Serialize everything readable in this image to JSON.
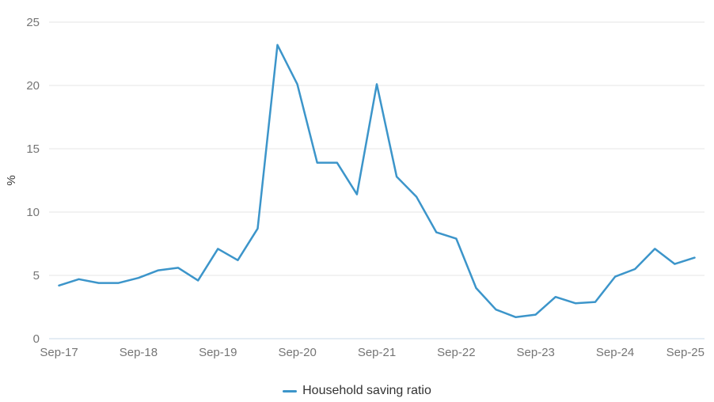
{
  "chart": {
    "ylabel": "%",
    "legend_label": "Household saving ratio"
  },
  "colors": {
    "line": "#3c95ca",
    "gridline": "#e6e6e6",
    "baseline": "#c9d9e8",
    "tick_label": "#757575",
    "legend_text": "#333333",
    "background": "#ffffff"
  },
  "chart_data": {
    "type": "line",
    "title": "",
    "xlabel": "",
    "ylabel": "%",
    "ylim": [
      0,
      25
    ],
    "yticks": [
      0,
      5,
      10,
      15,
      20,
      25
    ],
    "grid": "horizontal",
    "legend_position": "bottom-center",
    "x": [
      "Sep-17",
      "Dec-17",
      "Mar-18",
      "Jun-18",
      "Sep-18",
      "Dec-18",
      "Mar-19",
      "Jun-19",
      "Sep-19",
      "Dec-19",
      "Mar-20",
      "Jun-20",
      "Sep-20",
      "Dec-20",
      "Mar-21",
      "Jun-21",
      "Sep-21",
      "Dec-21",
      "Mar-22",
      "Jun-22",
      "Sep-22",
      "Dec-22",
      "Mar-23",
      "Jun-23",
      "Sep-23",
      "Dec-23",
      "Mar-24",
      "Jun-24",
      "Sep-24",
      "Dec-24",
      "Mar-25",
      "Jun-25",
      "Sep-25"
    ],
    "x_tick_labels": [
      "Sep-17",
      "Sep-18",
      "Sep-19",
      "Sep-20",
      "Sep-21",
      "Sep-22",
      "Sep-23",
      "Sep-24",
      "Sep-25"
    ],
    "series": [
      {
        "name": "Household saving ratio",
        "color": "#3c95ca",
        "values": [
          4.2,
          4.7,
          4.4,
          4.4,
          4.8,
          5.4,
          5.6,
          4.6,
          7.1,
          6.2,
          8.7,
          23.2,
          20.1,
          13.9,
          13.9,
          11.4,
          20.1,
          12.8,
          11.2,
          8.4,
          7.9,
          4.0,
          2.3,
          1.7,
          1.9,
          3.3,
          2.8,
          2.9,
          4.9,
          5.5,
          7.1,
          5.9,
          6.4
        ]
      }
    ]
  }
}
